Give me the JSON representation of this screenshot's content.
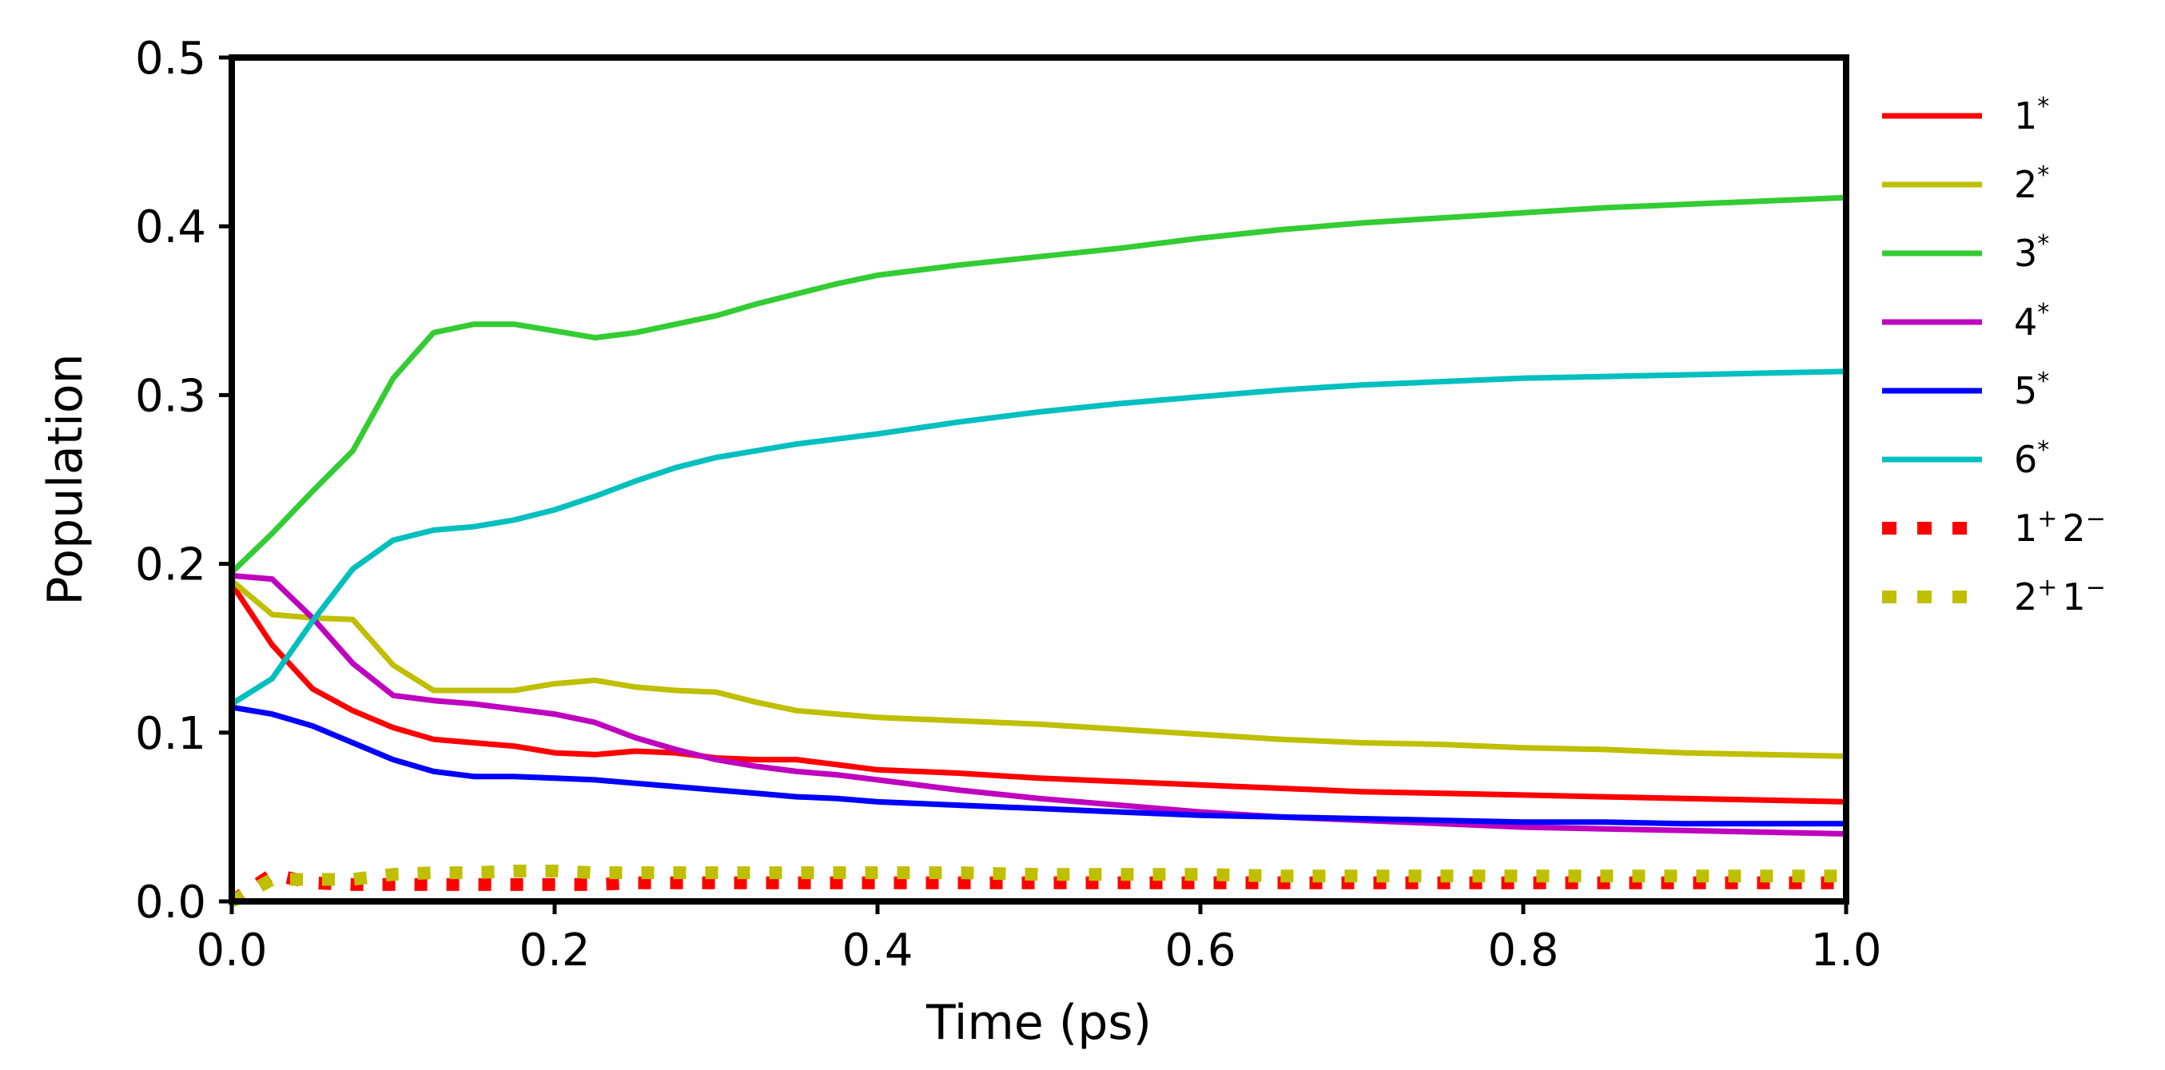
{
  "chart_data": {
    "type": "line",
    "title": "",
    "xlabel": "Time (ps)",
    "ylabel": "Population",
    "xlim": [
      0.0,
      1.0
    ],
    "ylim": [
      0.0,
      0.5
    ],
    "xticks": [
      0.0,
      0.2,
      0.4,
      0.6,
      0.8,
      1.0
    ],
    "xtick_labels": [
      "0.0",
      "0.2",
      "0.4",
      "0.6",
      "0.8",
      "1.0"
    ],
    "yticks": [
      0.0,
      0.1,
      0.2,
      0.3,
      0.4,
      0.5
    ],
    "ytick_labels": [
      "0.0",
      "0.1",
      "0.2",
      "0.3",
      "0.4",
      "0.5"
    ],
    "grid": false,
    "legend_position": "outside-right",
    "x": [
      0,
      0.025,
      0.05,
      0.075,
      0.1,
      0.125,
      0.15,
      0.175,
      0.2,
      0.225,
      0.25,
      0.275,
      0.3,
      0.325,
      0.35,
      0.375,
      0.4,
      0.45,
      0.5,
      0.55,
      0.6,
      0.65,
      0.7,
      0.75,
      0.8,
      0.85,
      0.9,
      0.95,
      1.0
    ],
    "series": [
      {
        "name": "1*",
        "base": "1",
        "sup": "*",
        "color": "#ff0000",
        "style": "solid",
        "values": [
          0.188,
          0.152,
          0.126,
          0.113,
          0.103,
          0.096,
          0.094,
          0.092,
          0.088,
          0.087,
          0.089,
          0.088,
          0.085,
          0.084,
          0.084,
          0.081,
          0.078,
          0.076,
          0.073,
          0.071,
          0.069,
          0.067,
          0.065,
          0.064,
          0.063,
          0.062,
          0.061,
          0.06,
          0.059
        ]
      },
      {
        "name": "2*",
        "base": "2",
        "sup": "*",
        "color": "#bfbf00",
        "style": "solid",
        "values": [
          0.19,
          0.17,
          0.168,
          0.167,
          0.14,
          0.125,
          0.125,
          0.125,
          0.129,
          0.131,
          0.127,
          0.125,
          0.124,
          0.118,
          0.113,
          0.111,
          0.109,
          0.107,
          0.105,
          0.102,
          0.099,
          0.096,
          0.094,
          0.093,
          0.091,
          0.09,
          0.088,
          0.087,
          0.086
        ]
      },
      {
        "name": "3*",
        "base": "3",
        "sup": "*",
        "color": "#33cc33",
        "style": "solid",
        "values": [
          0.195,
          0.218,
          0.243,
          0.267,
          0.31,
          0.337,
          0.342,
          0.342,
          0.338,
          0.334,
          0.337,
          0.342,
          0.347,
          0.354,
          0.36,
          0.366,
          0.371,
          0.377,
          0.382,
          0.387,
          0.393,
          0.398,
          0.402,
          0.405,
          0.408,
          0.411,
          0.413,
          0.415,
          0.417
        ]
      },
      {
        "name": "4*",
        "base": "4",
        "sup": "*",
        "color": "#bf00bf",
        "style": "solid",
        "values": [
          0.193,
          0.191,
          0.168,
          0.141,
          0.122,
          0.119,
          0.117,
          0.114,
          0.111,
          0.106,
          0.097,
          0.09,
          0.084,
          0.08,
          0.077,
          0.075,
          0.072,
          0.066,
          0.061,
          0.057,
          0.053,
          0.05,
          0.048,
          0.046,
          0.044,
          0.043,
          0.042,
          0.041,
          0.04
        ]
      },
      {
        "name": "5*",
        "base": "5",
        "sup": "*",
        "color": "#0000ff",
        "style": "solid",
        "values": [
          0.115,
          0.111,
          0.104,
          0.094,
          0.084,
          0.077,
          0.074,
          0.074,
          0.073,
          0.072,
          0.07,
          0.068,
          0.066,
          0.064,
          0.062,
          0.061,
          0.059,
          0.057,
          0.055,
          0.053,
          0.051,
          0.05,
          0.049,
          0.048,
          0.047,
          0.047,
          0.046,
          0.046,
          0.046
        ]
      },
      {
        "name": "6*",
        "base": "6",
        "sup": "*",
        "color": "#00bfbf",
        "style": "solid",
        "values": [
          0.117,
          0.132,
          0.166,
          0.197,
          0.214,
          0.22,
          0.222,
          0.226,
          0.232,
          0.24,
          0.249,
          0.257,
          0.263,
          0.267,
          0.271,
          0.274,
          0.277,
          0.284,
          0.29,
          0.295,
          0.299,
          0.303,
          0.306,
          0.308,
          0.31,
          0.311,
          0.312,
          0.313,
          0.314
        ]
      },
      {
        "name": "1+2-",
        "base": "1",
        "sup": "+",
        "base2": "2",
        "sup2": "−",
        "color": "#ff0000",
        "style": "dotted",
        "values": [
          0.0,
          0.016,
          0.011,
          0.01,
          0.01,
          0.01,
          0.01,
          0.01,
          0.01,
          0.01,
          0.011,
          0.011,
          0.011,
          0.011,
          0.011,
          0.011,
          0.011,
          0.011,
          0.011,
          0.011,
          0.011,
          0.011,
          0.011,
          0.011,
          0.011,
          0.011,
          0.011,
          0.011,
          0.011
        ]
      },
      {
        "name": "2+1-",
        "base": "2",
        "sup": "+",
        "base2": "1",
        "sup2": "−",
        "color": "#bfbf00",
        "style": "dotted",
        "values": [
          0.0,
          0.013,
          0.013,
          0.013,
          0.016,
          0.017,
          0.017,
          0.018,
          0.018,
          0.017,
          0.017,
          0.017,
          0.017,
          0.017,
          0.017,
          0.017,
          0.017,
          0.017,
          0.016,
          0.016,
          0.016,
          0.015,
          0.015,
          0.015,
          0.015,
          0.015,
          0.015,
          0.015,
          0.015
        ]
      }
    ]
  }
}
